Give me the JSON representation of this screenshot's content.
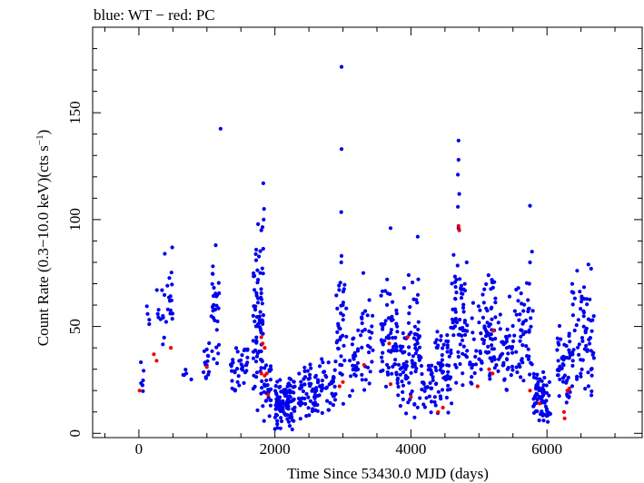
{
  "chart_data": {
    "type": "scatter",
    "title": "blue: WT − red: PC",
    "xlabel": "Time Since 53430.0 MJD (days)",
    "ylabel_main": "Count Rate (0.3−10.0 keV)(cts s",
    "ylabel_sup": "−1",
    "ylabel_end": ")",
    "xlim": [
      -680,
      7400
    ],
    "ylim": [
      -2,
      190
    ],
    "x_ticks": [
      0,
      2000,
      4000,
      6000
    ],
    "y_ticks": [
      0,
      50,
      100,
      150
    ],
    "x_tick_labels": [
      "0",
      "2000",
      "4000",
      "6000"
    ],
    "y_tick_labels": [
      "0",
      "50",
      "100",
      "150"
    ],
    "grid": false,
    "series": [
      {
        "color": "#0000ee",
        "clusters": [
          {
            "x": [
              20,
              70
            ],
            "y": [
              7,
              40
            ],
            "n": 6
          },
          {
            "x": [
              100,
              160
            ],
            "y": [
              35,
              73
            ],
            "n": 4
          },
          {
            "x": [
              230,
              380
            ],
            "y": [
              33,
              85
            ],
            "n": 10
          },
          {
            "x": [
              400,
              500
            ],
            "y": [
              38,
              88
            ],
            "n": 14
          },
          {
            "x": [
              650,
              800
            ],
            "y": [
              16,
              38
            ],
            "n": 5
          },
          {
            "x": [
              950,
              1050
            ],
            "y": [
              18,
              45
            ],
            "n": 14
          },
          {
            "x": [
              1050,
              1180
            ],
            "y": [
              28,
              88
            ],
            "n": 30
          },
          {
            "x": [
              1350,
              1600
            ],
            "y": [
              17,
              45
            ],
            "n": 40
          },
          {
            "x": [
              1680,
              1830
            ],
            "y": [
              5,
              100
            ],
            "n": 80
          },
          {
            "x": [
              1830,
              1950
            ],
            "y": [
              2,
              38
            ],
            "n": 25
          },
          {
            "x": [
              2000,
              2300
            ],
            "y": [
              1,
              28
            ],
            "n": 110
          },
          {
            "x": [
              2350,
              2650
            ],
            "y": [
              5,
              35
            ],
            "n": 60
          },
          {
            "x": [
              2650,
              2900
            ],
            "y": [
              8,
              38
            ],
            "n": 40
          },
          {
            "x": [
              2900,
              3050
            ],
            "y": [
              8,
              85
            ],
            "n": 35
          },
          {
            "x": [
              3100,
              3250
            ],
            "y": [
              14,
              50
            ],
            "n": 25
          },
          {
            "x": [
              3250,
              3450
            ],
            "y": [
              17,
              76
            ],
            "n": 30
          },
          {
            "x": [
              3550,
              3800
            ],
            "y": [
              18,
              72
            ],
            "n": 60
          },
          {
            "x": [
              3800,
              3950
            ],
            "y": [
              7,
              50
            ],
            "n": 35
          },
          {
            "x": [
              3950,
              4150
            ],
            "y": [
              5,
              80
            ],
            "n": 55
          },
          {
            "x": [
              4150,
              4350
            ],
            "y": [
              7,
              35
            ],
            "n": 30
          },
          {
            "x": [
              4350,
              4600
            ],
            "y": [
              8,
              53
            ],
            "n": 60
          },
          {
            "x": [
              4600,
              4800
            ],
            "y": [
              15,
              85
            ],
            "n": 60
          },
          {
            "x": [
              4800,
              5050
            ],
            "y": [
              12,
              65
            ],
            "n": 30
          },
          {
            "x": [
              5050,
              5250
            ],
            "y": [
              20,
              74
            ],
            "n": 55
          },
          {
            "x": [
              5250,
              5500
            ],
            "y": [
              18,
              58
            ],
            "n": 40
          },
          {
            "x": [
              5500,
              5800
            ],
            "y": [
              17,
              75
            ],
            "n": 50
          },
          {
            "x": [
              5800,
              6050
            ],
            "y": [
              3,
              31
            ],
            "n": 70
          },
          {
            "x": [
              6150,
              6350
            ],
            "y": [
              8,
              54
            ],
            "n": 45
          },
          {
            "x": [
              6350,
              6550
            ],
            "y": [
              18,
              80
            ],
            "n": 40
          },
          {
            "x": [
              6550,
              6700
            ],
            "y": [
              15,
              66
            ],
            "n": 30
          }
        ],
        "points": [
          [
            2980,
            171.5
          ],
          [
            1200,
            142.5
          ],
          [
            2980,
            133
          ],
          [
            4700,
            137
          ],
          [
            4700,
            128
          ],
          [
            4690,
            121
          ],
          [
            1830,
            117
          ],
          [
            1840,
            105
          ],
          [
            1835,
            100
          ],
          [
            1800,
            95
          ],
          [
            2975,
            103.5
          ],
          [
            3700,
            96
          ],
          [
            5750,
            106.5
          ],
          [
            4100,
            92
          ],
          [
            4710,
            112
          ],
          [
            4690,
            106
          ],
          [
            4700,
            96
          ],
          [
            2980,
            83
          ],
          [
            2975,
            80
          ],
          [
            490,
            87
          ],
          [
            380,
            84
          ],
          [
            1130,
            88
          ],
          [
            6610,
            79
          ],
          [
            6650,
            77
          ],
          [
            5140,
            74
          ],
          [
            5580,
            68
          ],
          [
            5450,
            64
          ],
          [
            3300,
            75
          ],
          [
            3650,
            72
          ],
          [
            3900,
            68
          ],
          [
            340,
            67
          ],
          [
            5750,
            80
          ],
          [
            5780,
            85
          ],
          [
            5740,
            70
          ],
          [
            4820,
            80
          ],
          [
            4650,
            63
          ],
          [
            3000,
            60
          ]
        ]
      },
      {
        "color": "#ee0000",
        "points": [
          [
            10,
            20
          ],
          [
            220,
            37
          ],
          [
            260,
            34
          ],
          [
            470,
            40
          ],
          [
            1000,
            31
          ],
          [
            1800,
            45
          ],
          [
            1820,
            42
          ],
          [
            1850,
            40
          ],
          [
            1800,
            28
          ],
          [
            1850,
            27
          ],
          [
            1880,
            28
          ],
          [
            1900,
            18
          ],
          [
            2950,
            22
          ],
          [
            3000,
            24
          ],
          [
            3310,
            32
          ],
          [
            3680,
            42
          ],
          [
            3700,
            23
          ],
          [
            3950,
            45
          ],
          [
            4000,
            17
          ],
          [
            4400,
            10
          ],
          [
            4470,
            12
          ],
          [
            4700,
            97
          ],
          [
            4710,
            95
          ],
          [
            4980,
            22
          ],
          [
            5150,
            30
          ],
          [
            5200,
            28
          ],
          [
            5210,
            48
          ],
          [
            5750,
            20
          ],
          [
            5890,
            14
          ],
          [
            6250,
            10
          ],
          [
            6260,
            7
          ],
          [
            6300,
            20
          ],
          [
            6330,
            21
          ]
        ]
      }
    ]
  }
}
